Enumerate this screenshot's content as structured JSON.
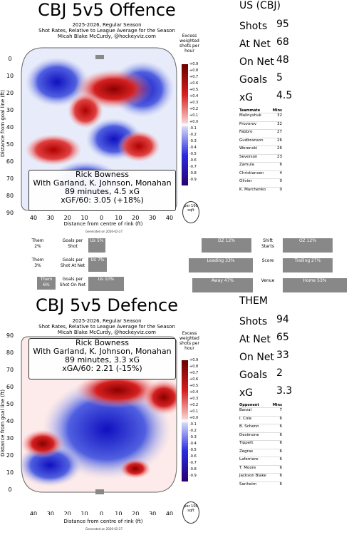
{
  "offence": {
    "title": "CBJ 5v5 Offence",
    "subtitle": [
      "2025-2026, Regular Season",
      "Shot Rates, Relative to League Average for the Season",
      "Micah Blake McCurdy, @hockeyviz.com"
    ],
    "legend_title": "Excess weighted shots per hour",
    "colorbar_ticks": [
      "+0.9",
      "+0.8",
      "+0.7",
      "+0.6",
      "+0.5",
      "+0.4",
      "+0.3",
      "+0.2",
      "+0.1",
      "+0.0",
      "-0.1",
      "-0.2",
      "-0.3",
      "-0.4",
      "-0.5",
      "-0.6",
      "-0.7",
      "-0.8",
      "-0.9"
    ],
    "coach": "Rick Bowness",
    "with_line": "With Garland, K. Johnson, Monahan",
    "minutes_line": "89 minutes, 4.5 xG",
    "rate_line": "xGF/60: 3.05 (+18%)",
    "per_label": "per 100 sqft",
    "generated": "Generated on 2026-02-27",
    "ylabel": "Distance from goal line (ft)",
    "xlabel": "Distance from centre of rink (ft)",
    "yticks": [
      "0",
      "10",
      "20",
      "30",
      "40",
      "50",
      "60",
      "70",
      "80",
      "90"
    ],
    "xticks": [
      "40",
      "30",
      "20",
      "10",
      "0",
      "10",
      "20",
      "30",
      "40"
    ]
  },
  "defence": {
    "title": "CBJ 5v5 Defence",
    "subtitle": [
      "2025-2026, Regular Season",
      "Shot Rates, Relative to League Average for the Season",
      "Micah Blake McCurdy, @hockeyviz.com"
    ],
    "legend_title": "Excess weighted shots per hour",
    "colorbar_ticks": [
      "+0.9",
      "+0.8",
      "+0.7",
      "+0.6",
      "+0.5",
      "+0.4",
      "+0.3",
      "+0.2",
      "+0.1",
      "+0.0",
      "-0.1",
      "-0.2",
      "-0.3",
      "-0.4",
      "-0.5",
      "-0.6",
      "-0.7",
      "-0.8",
      "-0.9"
    ],
    "coach": "Rick Bowness",
    "with_line": "With Garland, K. Johnson, Monahan",
    "minutes_line": "89 minutes, 3.3 xG",
    "rate_line": "xGA/60: 2.21 (-15%)",
    "per_label": "per 100 sqft",
    "generated": "Generated on 2026-02-27",
    "ylabel": "Distance from goal line (ft)",
    "xlabel": "Distance from centre of rink (ft)",
    "yticks": [
      "90",
      "80",
      "70",
      "60",
      "50",
      "40",
      "30",
      "20",
      "10",
      "0"
    ],
    "xticks": [
      "40",
      "30",
      "20",
      "10",
      "0",
      "10",
      "20",
      "30",
      "40"
    ]
  },
  "us_stats": {
    "heading": "US (CBJ)",
    "rows": [
      {
        "label": "Shots",
        "value": "95"
      },
      {
        "label": "At Net",
        "value": "68"
      },
      {
        "label": "On Net",
        "value": "48"
      },
      {
        "label": "Goals",
        "value": "5"
      },
      {
        "label": "xG",
        "value": "4.5"
      }
    ],
    "table_header": [
      "Teammate",
      "Mins"
    ],
    "table": [
      [
        "Malinyshuk",
        "32"
      ],
      [
        "Provorov",
        "32"
      ],
      [
        "Fabbro",
        "27"
      ],
      [
        "Gudbranson",
        "26"
      ],
      [
        "Werenski",
        "26"
      ],
      [
        "Severson",
        "23"
      ],
      [
        "Zamula",
        "6"
      ],
      [
        "Christiansen",
        "4"
      ],
      [
        "Olivier",
        "0"
      ],
      [
        "K. Marchenko",
        "0"
      ]
    ]
  },
  "them_stats": {
    "heading": "THEM",
    "rows": [
      {
        "label": "Shots",
        "value": "94"
      },
      {
        "label": "At Net",
        "value": "65"
      },
      {
        "label": "On Net",
        "value": "33"
      },
      {
        "label": "Goals",
        "value": "2"
      },
      {
        "label": "xG",
        "value": "3.3"
      }
    ],
    "table_header": [
      "Opponent",
      "Mins"
    ],
    "table": [
      [
        "Barzal",
        "7"
      ],
      [
        "I. Cole",
        "6"
      ],
      [
        "B. Schenn",
        "6"
      ],
      [
        "Desimone",
        "6"
      ],
      [
        "Tippett",
        "6"
      ],
      [
        "Zegras",
        "6"
      ],
      [
        "Laferriere",
        "6"
      ],
      [
        "T. Moore",
        "6"
      ],
      [
        "Jackson Blake",
        "6"
      ],
      [
        "Sanheim",
        "6"
      ]
    ]
  },
  "middle": {
    "rows": [
      {
        "them": "Them 2%",
        "label": "Goals per Shot",
        "us": "Us 5%"
      },
      {
        "them": "Them 3%",
        "label": "Goals per Shot At Net",
        "us": "Us 7%"
      },
      {
        "them": "Them 6%",
        "label": "Goals per Shot On Net",
        "us": "Us 10%"
      }
    ],
    "right_rows": [
      {
        "left": "DZ 12%",
        "label": "Shift Starts",
        "right": "OZ 12%"
      },
      {
        "left": "Leading 33%",
        "label": "Score",
        "right": "Trailing 27%"
      },
      {
        "left": "Away 47%",
        "label": "Venue",
        "right": "Home 53%"
      }
    ]
  },
  "chart_data": [
    {
      "type": "heatmap",
      "title": "CBJ 5v5 Offence",
      "xlabel": "Distance from centre of rink (ft)",
      "ylabel": "Distance from goal line (ft)",
      "xlim": [
        -40,
        40
      ],
      "ylim": [
        0,
        90
      ],
      "colorbar_range": [
        -0.9,
        0.9
      ]
    },
    {
      "type": "heatmap",
      "title": "CBJ 5v5 Defence",
      "xlabel": "Distance from centre of rink (ft)",
      "ylabel": "Distance from goal line (ft)",
      "xlim": [
        -40,
        40
      ],
      "ylim": [
        0,
        90
      ],
      "colorbar_range": [
        -0.9,
        0.9
      ]
    }
  ]
}
